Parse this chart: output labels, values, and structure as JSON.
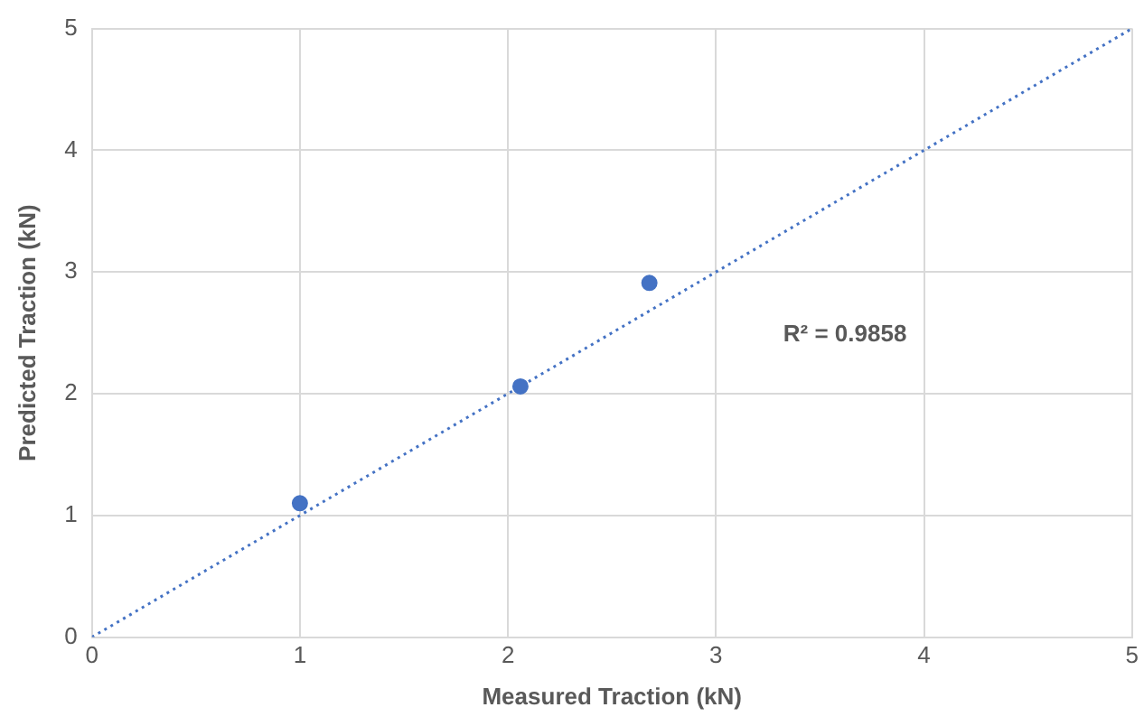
{
  "chart_data": {
    "type": "scatter",
    "xlabel": "Measured Traction (kN)",
    "ylabel": "Predicted Traction (kN)",
    "xlim": [
      0,
      5
    ],
    "xticks": [
      0,
      1,
      2,
      3,
      4,
      5
    ],
    "ylim": [
      0,
      5
    ],
    "yticks": [
      0,
      1,
      2,
      3,
      4,
      5
    ],
    "grid": true,
    "legend": false,
    "annotations": [
      "R² = 0.9858"
    ],
    "series": [
      {
        "type": "scatter",
        "color": "#4472c4",
        "x": [
          1,
          2.06,
          2.68
        ],
        "values": [
          1.1,
          2.06,
          2.91
        ],
        "marker": "circle"
      },
      {
        "type": "line",
        "color": "#4472c4",
        "x": [
          0,
          5
        ],
        "values": [
          0,
          5
        ],
        "line_style": "dotted",
        "marker": "none"
      }
    ]
  }
}
